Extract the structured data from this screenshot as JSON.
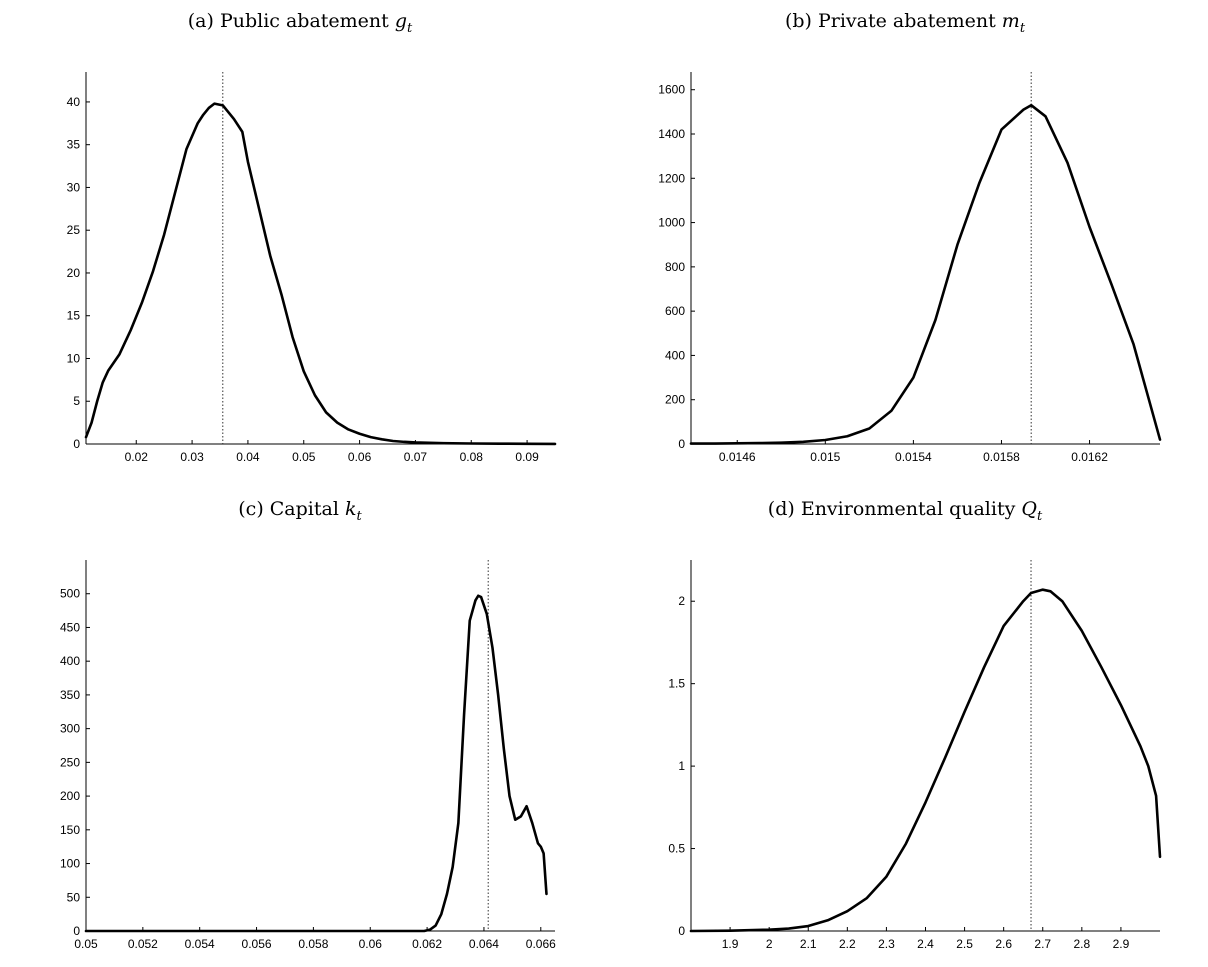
{
  "chart_data": [
    {
      "type": "line",
      "title_prefix": "(a) Public abatement ",
      "title_var": "g",
      "title_sub": "t",
      "xlim": [
        0.011,
        0.095
      ],
      "ylim": [
        0,
        43.5
      ],
      "xticks": [
        0.02,
        0.03,
        0.04,
        0.05,
        0.06,
        0.07,
        0.08,
        0.09
      ],
      "xtick_labels": [
        "0.02",
        "0.03",
        "0.04",
        "0.05",
        "0.06",
        "0.07",
        "0.08",
        "0.09"
      ],
      "yticks": [
        0,
        5,
        10,
        15,
        20,
        25,
        30,
        35,
        40
      ],
      "ytick_labels": [
        "0",
        "5",
        "10",
        "15",
        "20",
        "25",
        "30",
        "35",
        "40"
      ],
      "vline": 0.0355,
      "x": [
        0.011,
        0.012,
        0.013,
        0.014,
        0.015,
        0.017,
        0.019,
        0.021,
        0.023,
        0.025,
        0.027,
        0.029,
        0.031,
        0.032,
        0.033,
        0.034,
        0.0355,
        0.0365,
        0.0375,
        0.039,
        0.04,
        0.042,
        0.044,
        0.046,
        0.048,
        0.05,
        0.052,
        0.054,
        0.056,
        0.058,
        0.06,
        0.062,
        0.064,
        0.066,
        0.068,
        0.07,
        0.075,
        0.08,
        0.085,
        0.09,
        0.095
      ],
      "y": [
        0.8,
        2.5,
        5.0,
        7.2,
        8.6,
        10.5,
        13.3,
        16.5,
        20.2,
        24.5,
        29.5,
        34.5,
        37.5,
        38.5,
        39.3,
        39.8,
        39.6,
        38.8,
        38.0,
        36.5,
        33.0,
        27.5,
        22.0,
        17.5,
        12.5,
        8.5,
        5.7,
        3.7,
        2.5,
        1.7,
        1.2,
        0.8,
        0.55,
        0.35,
        0.25,
        0.18,
        0.1,
        0.06,
        0.04,
        0.02,
        0.01
      ]
    },
    {
      "type": "line",
      "title_prefix": "(b) Private abatement ",
      "title_var": "m",
      "title_sub": "t",
      "xlim": [
        0.01439,
        0.01652
      ],
      "ylim": [
        0,
        1680
      ],
      "xticks": [
        0.0146,
        0.015,
        0.0154,
        0.0158,
        0.0162
      ],
      "xtick_labels": [
        "0.0146",
        "0.015",
        "0.0154",
        "0.0158",
        "0.0162"
      ],
      "yticks": [
        0,
        200,
        400,
        600,
        800,
        1000,
        1200,
        1400,
        1600
      ],
      "ytick_labels": [
        "0",
        "200",
        "400",
        "600",
        "800",
        "1000",
        "1200",
        "1400",
        "1600"
      ],
      "vline": 0.015935,
      "x": [
        0.01439,
        0.0145,
        0.0146,
        0.0147,
        0.0148,
        0.0149,
        0.015,
        0.0151,
        0.0152,
        0.0153,
        0.0154,
        0.0155,
        0.0156,
        0.0157,
        0.0158,
        0.0159,
        0.015935,
        0.016,
        0.0161,
        0.0162,
        0.0163,
        0.0164,
        0.01652
      ],
      "y": [
        2,
        2,
        3,
        4,
        6,
        10,
        18,
        35,
        70,
        150,
        300,
        560,
        900,
        1180,
        1420,
        1510,
        1530,
        1480,
        1270,
        980,
        720,
        450,
        20
      ]
    },
    {
      "type": "line",
      "title_prefix": "(c) Capital ",
      "title_var": "k",
      "title_sub": "t",
      "xlim": [
        0.05,
        0.0665
      ],
      "ylim": [
        0,
        550
      ],
      "xticks": [
        0.05,
        0.052,
        0.054,
        0.056,
        0.058,
        0.06,
        0.062,
        0.064,
        0.066
      ],
      "xtick_labels": [
        "0.05",
        "0.052",
        "0.054",
        "0.056",
        "0.058",
        "0.06",
        "0.062",
        "0.064",
        "0.066"
      ],
      "yticks": [
        0,
        50,
        100,
        150,
        200,
        250,
        300,
        350,
        400,
        450,
        500
      ],
      "ytick_labels": [
        "0",
        "50",
        "100",
        "150",
        "200",
        "250",
        "300",
        "350",
        "400",
        "450",
        "500"
      ],
      "vline": 0.06415,
      "x": [
        0.05,
        0.052,
        0.054,
        0.056,
        0.058,
        0.06,
        0.0615,
        0.0619,
        0.0621,
        0.0623,
        0.0625,
        0.0627,
        0.0629,
        0.0631,
        0.0633,
        0.0635,
        0.0637,
        0.0638,
        0.0639,
        0.0641,
        0.0643,
        0.0645,
        0.0647,
        0.0649,
        0.0651,
        0.0653,
        0.0655,
        0.0657,
        0.0659,
        0.066,
        0.0661,
        0.0662
      ],
      "y": [
        0,
        0,
        0,
        0,
        0,
        0,
        0,
        0,
        2,
        8,
        25,
        55,
        95,
        160,
        320,
        460,
        490,
        497,
        495,
        470,
        420,
        350,
        270,
        200,
        165,
        170,
        185,
        160,
        130,
        125,
        115,
        55
      ]
    },
    {
      "type": "line",
      "title_prefix": "(d) Environmental quality ",
      "title_var": "Q",
      "title_sub": "t",
      "xlim": [
        1.8,
        3.0
      ],
      "ylim": [
        0,
        2.25
      ],
      "xticks": [
        1.9,
        2.0,
        2.1,
        2.2,
        2.3,
        2.4,
        2.5,
        2.6,
        2.7,
        2.8,
        2.9
      ],
      "xtick_labels": [
        "1.9",
        "2",
        "2.1",
        "2.2",
        "2.3",
        "2.4",
        "2.5",
        "2.6",
        "2.7",
        "2.8",
        "2.9"
      ],
      "yticks": [
        0,
        0.5,
        1,
        1.5,
        2
      ],
      "ytick_labels": [
        "0",
        "0.5",
        "1",
        "1.5",
        "2"
      ],
      "vline": 2.67,
      "x": [
        1.8,
        1.9,
        2.0,
        2.05,
        2.1,
        2.15,
        2.2,
        2.25,
        2.3,
        2.35,
        2.4,
        2.45,
        2.5,
        2.55,
        2.6,
        2.65,
        2.67,
        2.7,
        2.72,
        2.75,
        2.8,
        2.85,
        2.9,
        2.95,
        2.97,
        2.99,
        3.0
      ],
      "y": [
        0.0,
        0.002,
        0.008,
        0.015,
        0.03,
        0.065,
        0.12,
        0.2,
        0.33,
        0.53,
        0.78,
        1.05,
        1.33,
        1.6,
        1.85,
        2.0,
        2.05,
        2.07,
        2.06,
        2.0,
        1.82,
        1.6,
        1.37,
        1.12,
        1.0,
        0.82,
        0.45
      ]
    }
  ]
}
